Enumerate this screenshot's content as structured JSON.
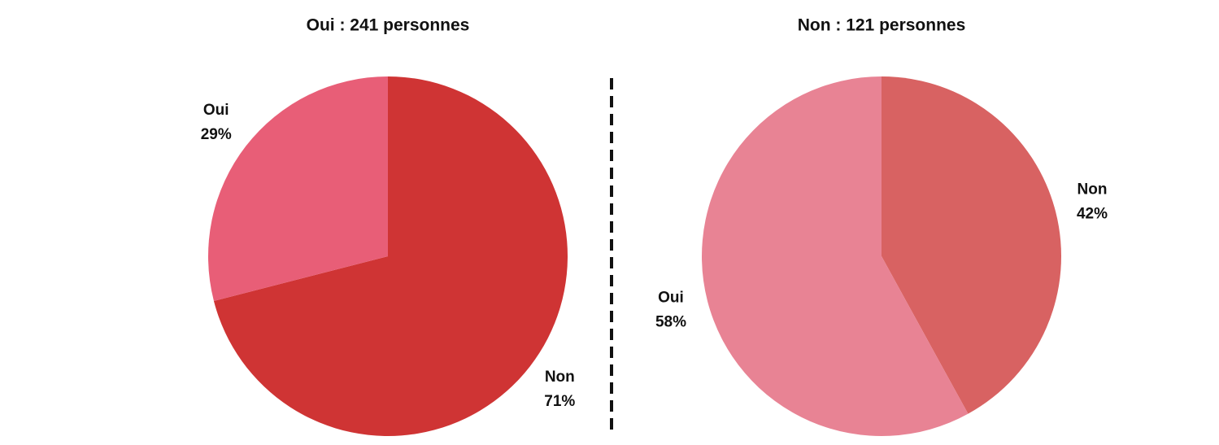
{
  "chart_data": [
    {
      "type": "pie",
      "title": "Oui : 241 personnes",
      "categories": [
        "Non",
        "Oui"
      ],
      "values": [
        71,
        29
      ],
      "value_labels": [
        "71%",
        "29%"
      ],
      "colors": [
        "#cf3434",
        "#e85e77"
      ]
    },
    {
      "type": "pie",
      "title": "Non : 121 personnes",
      "categories": [
        "Non",
        "Oui"
      ],
      "values": [
        42,
        58
      ],
      "value_labels": [
        "42%",
        "58%"
      ],
      "colors": [
        "#d86262",
        "#e88394"
      ]
    }
  ]
}
